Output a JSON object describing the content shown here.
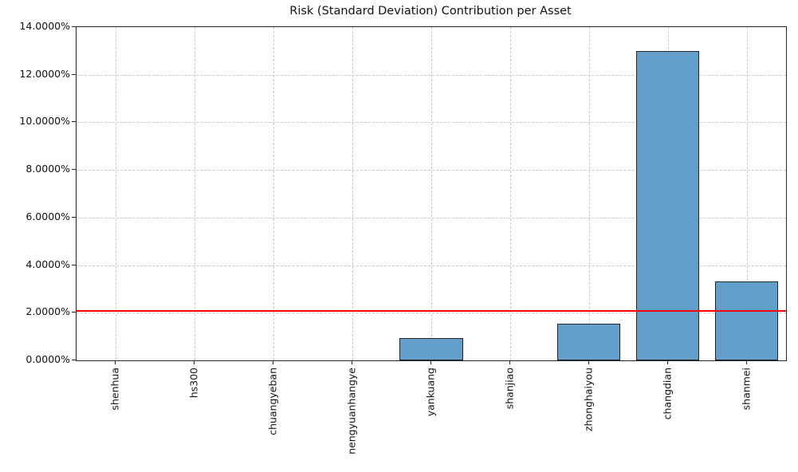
{
  "chart_data": {
    "type": "bar",
    "title": "Risk (Standard Deviation) Contribution per Asset",
    "categories": [
      "shenhua",
      "hs300",
      "chuangyeban",
      "nengyuanhangye",
      "yankuang",
      "shanjiao",
      "zhonghaiyou",
      "changdian",
      "shanmei"
    ],
    "values": [
      0.0,
      0.0,
      0.0,
      0.0,
      0.95,
      0.0,
      1.55,
      13.0,
      3.3
    ],
    "value_unit": "percent",
    "xlabel": "",
    "ylabel": "",
    "ylim": [
      0,
      14
    ],
    "ytick_step": 2,
    "ytick_labels": [
      "0.0000%",
      "2.0000%",
      "4.0000%",
      "6.0000%",
      "8.0000%",
      "10.0000%",
      "12.0000%",
      "14.0000%"
    ],
    "grid": true,
    "legend_position": "none",
    "reference_line": {
      "value": 2.09,
      "color": "#ff0000"
    },
    "bar_color": "#62a0cb",
    "bar_edge_color": "#262626"
  }
}
